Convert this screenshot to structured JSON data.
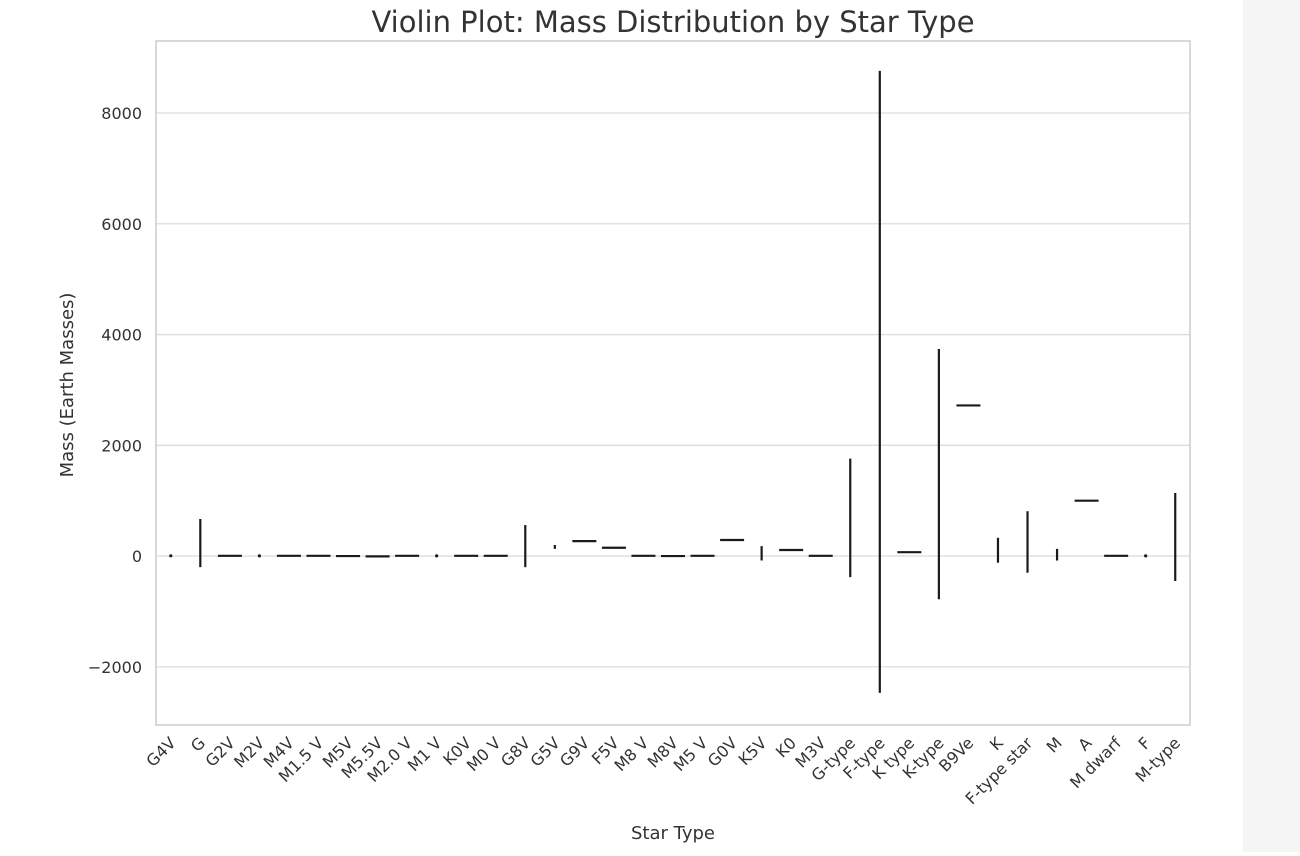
{
  "chart_data": {
    "type": "violin",
    "title": "Violin Plot: Mass Distribution by Star Type",
    "xlabel": "Star Type",
    "ylabel": "Mass (Earth Masses)",
    "ylim": [
      -3050,
      9300
    ],
    "yticks": [
      -2000,
      0,
      2000,
      4000,
      6000,
      8000
    ],
    "ytick_labels": [
      "−2000",
      "0",
      "2000",
      "4000",
      "6000",
      "8000"
    ],
    "grid": "horizontal",
    "categories": [
      "G4V",
      "G",
      "G2V",
      "M2V",
      "M4V",
      "M1.5 V",
      "M5V",
      "M5.5V",
      "M2.0 V",
      "M1 V",
      "K0V",
      "M0 V",
      "G8V",
      "G5V",
      "G9V",
      "F5V",
      "M8 V",
      "M8V",
      "M5 V",
      "G0V",
      "K5V",
      "K0",
      "M3V",
      "G-type",
      "F-type",
      "K type",
      "K-type",
      "B9Ve",
      "K",
      "F-type star",
      "M",
      "A",
      "M dwarf",
      "F",
      "M-type"
    ],
    "series": [
      {
        "values": [
          {
            "kind": "point",
            "value": 5
          },
          {
            "kind": "vline",
            "min": -200,
            "max": 670
          },
          {
            "kind": "hline",
            "value": 5
          },
          {
            "kind": "point",
            "value": 3
          },
          {
            "kind": "hline",
            "value": 5
          },
          {
            "kind": "hline",
            "value": 5
          },
          {
            "kind": "hline",
            "value": 0
          },
          {
            "kind": "hline",
            "value": -5
          },
          {
            "kind": "hline",
            "value": 5
          },
          {
            "kind": "point",
            "value": 3
          },
          {
            "kind": "hline",
            "value": 5
          },
          {
            "kind": "hline",
            "value": 5
          },
          {
            "kind": "vline",
            "min": -200,
            "max": 560
          },
          {
            "kind": "vline",
            "min": 130,
            "max": 200
          },
          {
            "kind": "hline",
            "value": 270
          },
          {
            "kind": "hline",
            "value": 150
          },
          {
            "kind": "hline",
            "value": 5
          },
          {
            "kind": "hline",
            "value": 0
          },
          {
            "kind": "hline",
            "value": 5
          },
          {
            "kind": "hline",
            "value": 290
          },
          {
            "kind": "vline",
            "min": -80,
            "max": 180
          },
          {
            "kind": "hline",
            "value": 110
          },
          {
            "kind": "hline",
            "value": 5
          },
          {
            "kind": "vline",
            "min": -380,
            "max": 1760
          },
          {
            "kind": "vline",
            "min": -2470,
            "max": 8760
          },
          {
            "kind": "hline",
            "value": 70
          },
          {
            "kind": "vline",
            "min": -780,
            "max": 3740
          },
          {
            "kind": "hline",
            "value": 2720
          },
          {
            "kind": "vline",
            "min": -120,
            "max": 330
          },
          {
            "kind": "vline",
            "min": -300,
            "max": 810
          },
          {
            "kind": "vline",
            "min": -80,
            "max": 130
          },
          {
            "kind": "hline",
            "value": 1000
          },
          {
            "kind": "hline",
            "value": 5
          },
          {
            "kind": "point",
            "value": 3
          },
          {
            "kind": "vline",
            "min": -450,
            "max": 1140
          }
        ]
      }
    ]
  }
}
